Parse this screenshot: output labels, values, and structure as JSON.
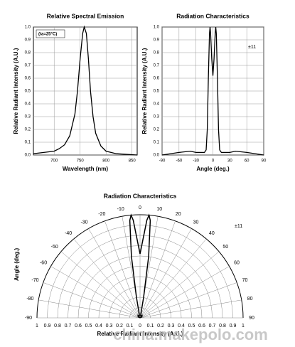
{
  "chart_data": [
    {
      "type": "line",
      "title": "Relative Spectral Emission",
      "xlabel": "Wavelength (nm)",
      "ylabel": "Relative Radiant Intensity (A.U.)",
      "annotation": "(ta=25°C)",
      "color": "#000000",
      "grid": true,
      "x": [
        660,
        680,
        700,
        710,
        720,
        730,
        740,
        745,
        750,
        755,
        758,
        762,
        766,
        770,
        775,
        780,
        790,
        800,
        820,
        860
      ],
      "values": [
        0.01,
        0.02,
        0.03,
        0.05,
        0.08,
        0.15,
        0.32,
        0.5,
        0.75,
        0.95,
        1.0,
        0.95,
        0.75,
        0.5,
        0.3,
        0.17,
        0.07,
        0.03,
        0.01,
        0.0
      ],
      "xlim": [
        660,
        860
      ],
      "xticks": [
        700,
        750,
        800,
        850
      ],
      "ylim": [
        0,
        1
      ],
      "yticks": [
        {
          "value": 0,
          "label": "0.0"
        },
        0.1,
        0.2,
        0.3,
        0.4,
        0.5,
        0.6,
        0.7,
        0.8,
        0.9,
        {
          "value": 1,
          "label": "1.0"
        }
      ]
    },
    {
      "type": "line",
      "title": "Radiation Characteristics",
      "xlabel": "Angle (deg.)",
      "ylabel": "Relative Radiant Intensity (A.U.)",
      "annotation": "±11",
      "color": "#000000",
      "grid": true,
      "x": [
        -90,
        -60,
        -40,
        -30,
        -20,
        -15,
        -12,
        -10,
        -8,
        -6,
        -5,
        -4,
        -2,
        0,
        2,
        4,
        5,
        6,
        8,
        10,
        12,
        15,
        20,
        30,
        40,
        60,
        90
      ],
      "values": [
        0,
        0.02,
        0.03,
        0.02,
        0.02,
        0.02,
        0.04,
        0.2,
        0.6,
        0.95,
        1.0,
        0.95,
        0.75,
        0.62,
        0.75,
        0.95,
        1.0,
        0.95,
        0.6,
        0.2,
        0.04,
        0.02,
        0.02,
        0.02,
        0.03,
        0.02,
        0
      ],
      "xlim": [
        -90,
        90
      ],
      "xticks": [
        -90,
        -60,
        -30,
        0,
        30,
        60,
        90
      ],
      "ylim": [
        0,
        1
      ],
      "yticks": [
        {
          "value": 0,
          "label": "0.0"
        },
        0.1,
        0.2,
        0.3,
        0.4,
        0.5,
        0.6,
        0.7,
        0.8,
        0.9,
        {
          "value": 1,
          "label": "1.0"
        }
      ]
    },
    {
      "type": "polar",
      "title": "Radiation Characteristics",
      "rlabel": "Relative Radiant Intensity (A.U.)",
      "thetalabel": "Angle (deg.)",
      "annotation": "±11",
      "watermark": "china.makepolo.com",
      "color": "#000000",
      "theta": [
        -90,
        -60,
        -40,
        -30,
        -20,
        -15,
        -12,
        -10,
        -8,
        -6,
        -5,
        -4,
        -2,
        0,
        2,
        4,
        5,
        6,
        8,
        10,
        12,
        15,
        20,
        30,
        40,
        60,
        90
      ],
      "values": [
        0,
        0.02,
        0.03,
        0.02,
        0.02,
        0.02,
        0.04,
        0.2,
        0.6,
        0.95,
        1.0,
        0.95,
        0.75,
        0.62,
        0.75,
        0.95,
        1.0,
        0.95,
        0.6,
        0.2,
        0.04,
        0.02,
        0.02,
        0.02,
        0.03,
        0.02,
        0
      ],
      "thetaticks": [
        -90,
        -80,
        -70,
        -60,
        -50,
        -40,
        -30,
        -20,
        -10,
        0,
        10,
        20,
        30,
        40,
        50,
        60,
        70,
        80,
        90
      ],
      "rlim": [
        0,
        1
      ],
      "rticks": [
        0,
        0.1,
        0.2,
        0.3,
        0.4,
        0.5,
        0.6,
        0.7,
        0.8,
        0.9,
        1
      ]
    }
  ]
}
